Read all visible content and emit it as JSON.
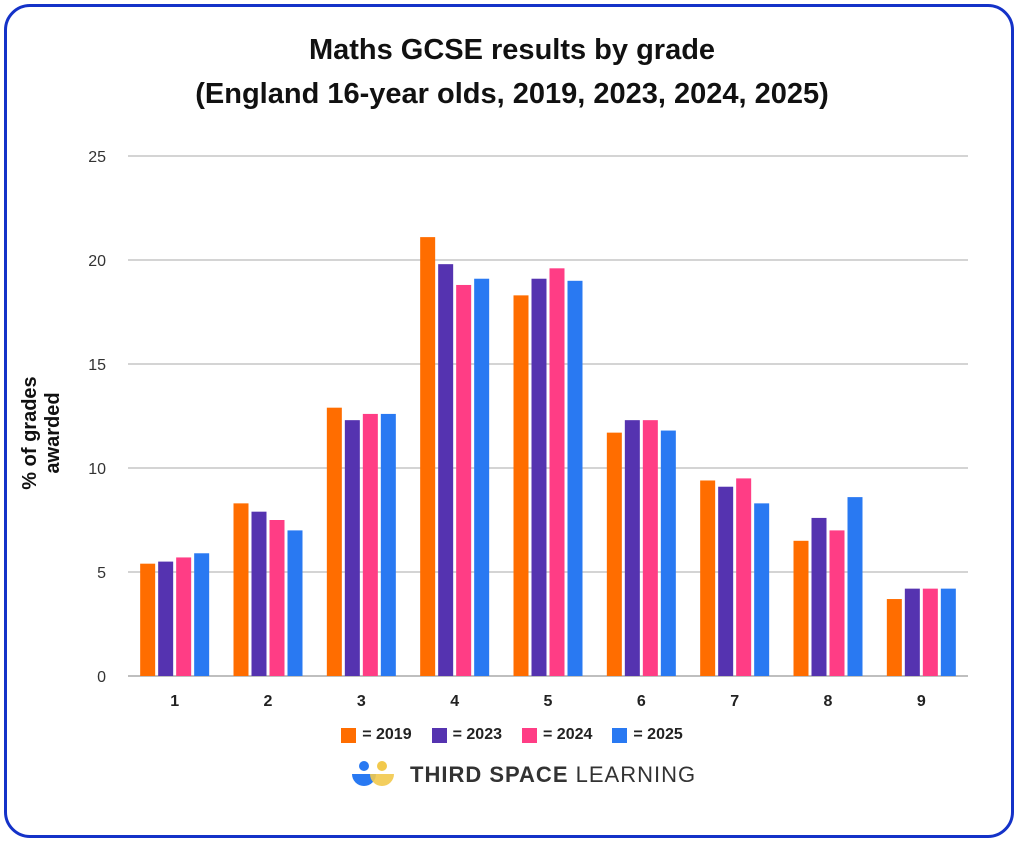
{
  "chart_data": {
    "type": "bar",
    "title": "Maths GCSE results by grade",
    "subtitle": "(England 16-year olds, 2019, 2023, 2024, 2025)",
    "xlabel": "",
    "ylabel": "% of grades awarded",
    "ylim": [
      0,
      25
    ],
    "yticks": [
      0,
      5,
      10,
      15,
      20,
      25
    ],
    "grid": true,
    "legend_position": "bottom",
    "categories": [
      "1",
      "2",
      "3",
      "4",
      "5",
      "6",
      "7",
      "8",
      "9"
    ],
    "series": [
      {
        "name": "= 2019",
        "color": "#ff6d00",
        "values": [
          5.4,
          8.3,
          12.9,
          21.1,
          18.3,
          11.7,
          9.4,
          6.5,
          3.7
        ]
      },
      {
        "name": "= 2023",
        "color": "#5533b0",
        "values": [
          5.5,
          7.9,
          12.3,
          19.8,
          19.1,
          12.3,
          9.1,
          7.6,
          4.2
        ]
      },
      {
        "name": "= 2024",
        "color": "#ff3d85",
        "values": [
          5.7,
          7.5,
          12.6,
          18.8,
          19.6,
          12.3,
          9.5,
          7.0,
          4.2
        ]
      },
      {
        "name": "= 2025",
        "color": "#2979f2",
        "values": [
          5.9,
          7.0,
          12.6,
          19.1,
          19.0,
          11.8,
          8.3,
          8.6,
          4.2
        ]
      }
    ]
  },
  "logo": {
    "bold": "THIRD SPACE",
    "light": "LEARNING"
  }
}
